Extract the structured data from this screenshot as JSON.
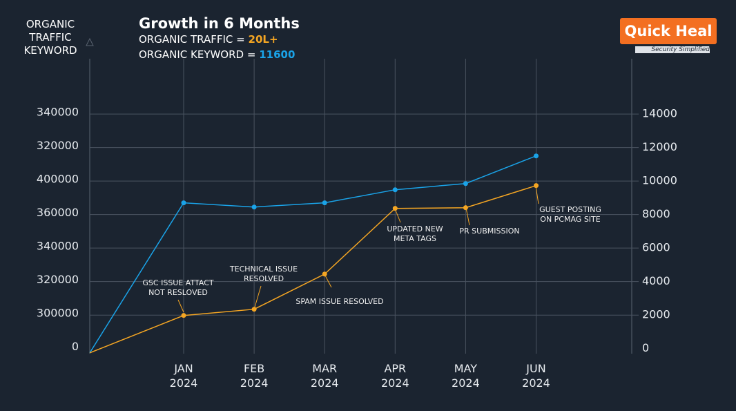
{
  "chart_data": {
    "type": "line",
    "title": "Growth in 6 Months",
    "subtitle_traffic": "ORGANIC TRAFFIC  =",
    "traffic_total": "20L+",
    "subtitle_keyword": "ORGANIC KEYWORD =",
    "keyword_total": "11600",
    "left_axis_title": "ORGANIC\nTRAFFIC\nKEYWORD",
    "left_axis_labels": [
      340000,
      320000,
      400000,
      360000,
      340000,
      320000,
      300000,
      0
    ],
    "categories": [
      null,
      "JAN 2024",
      "FEB 2024",
      "MAR 2024",
      "APR 2024",
      "MAY 2024",
      "JUN 2024"
    ],
    "series": [
      {
        "color": "#1aa3e8",
        "values": [
          -250,
          8700,
          8450,
          8700,
          9480,
          9850,
          11500
        ]
      },
      {
        "color": "#f5a623",
        "values": [
          -250,
          1980,
          2350,
          4450,
          8370,
          8410,
          9730
        ]
      }
    ],
    "ylim": [
      -300,
      17300
    ],
    "yticks": [
      14000,
      12000,
      10000,
      8000,
      6000,
      4000,
      2000,
      0
    ],
    "grid": true,
    "annotations": [
      "GSC ISSUE ATTACT\nNOT RESLOVED",
      "TECHNICAL ISSUE\nRESOLVED",
      "SPAM ISSUE RESOLVED",
      "UPDATED NEW\nMETA TAGS",
      "PR SUBMISSION",
      "GUEST POSTING\nON PCMAG SITE"
    ],
    "logo": "Quick Heal",
    "logo_tagline": "Security Simplified"
  }
}
